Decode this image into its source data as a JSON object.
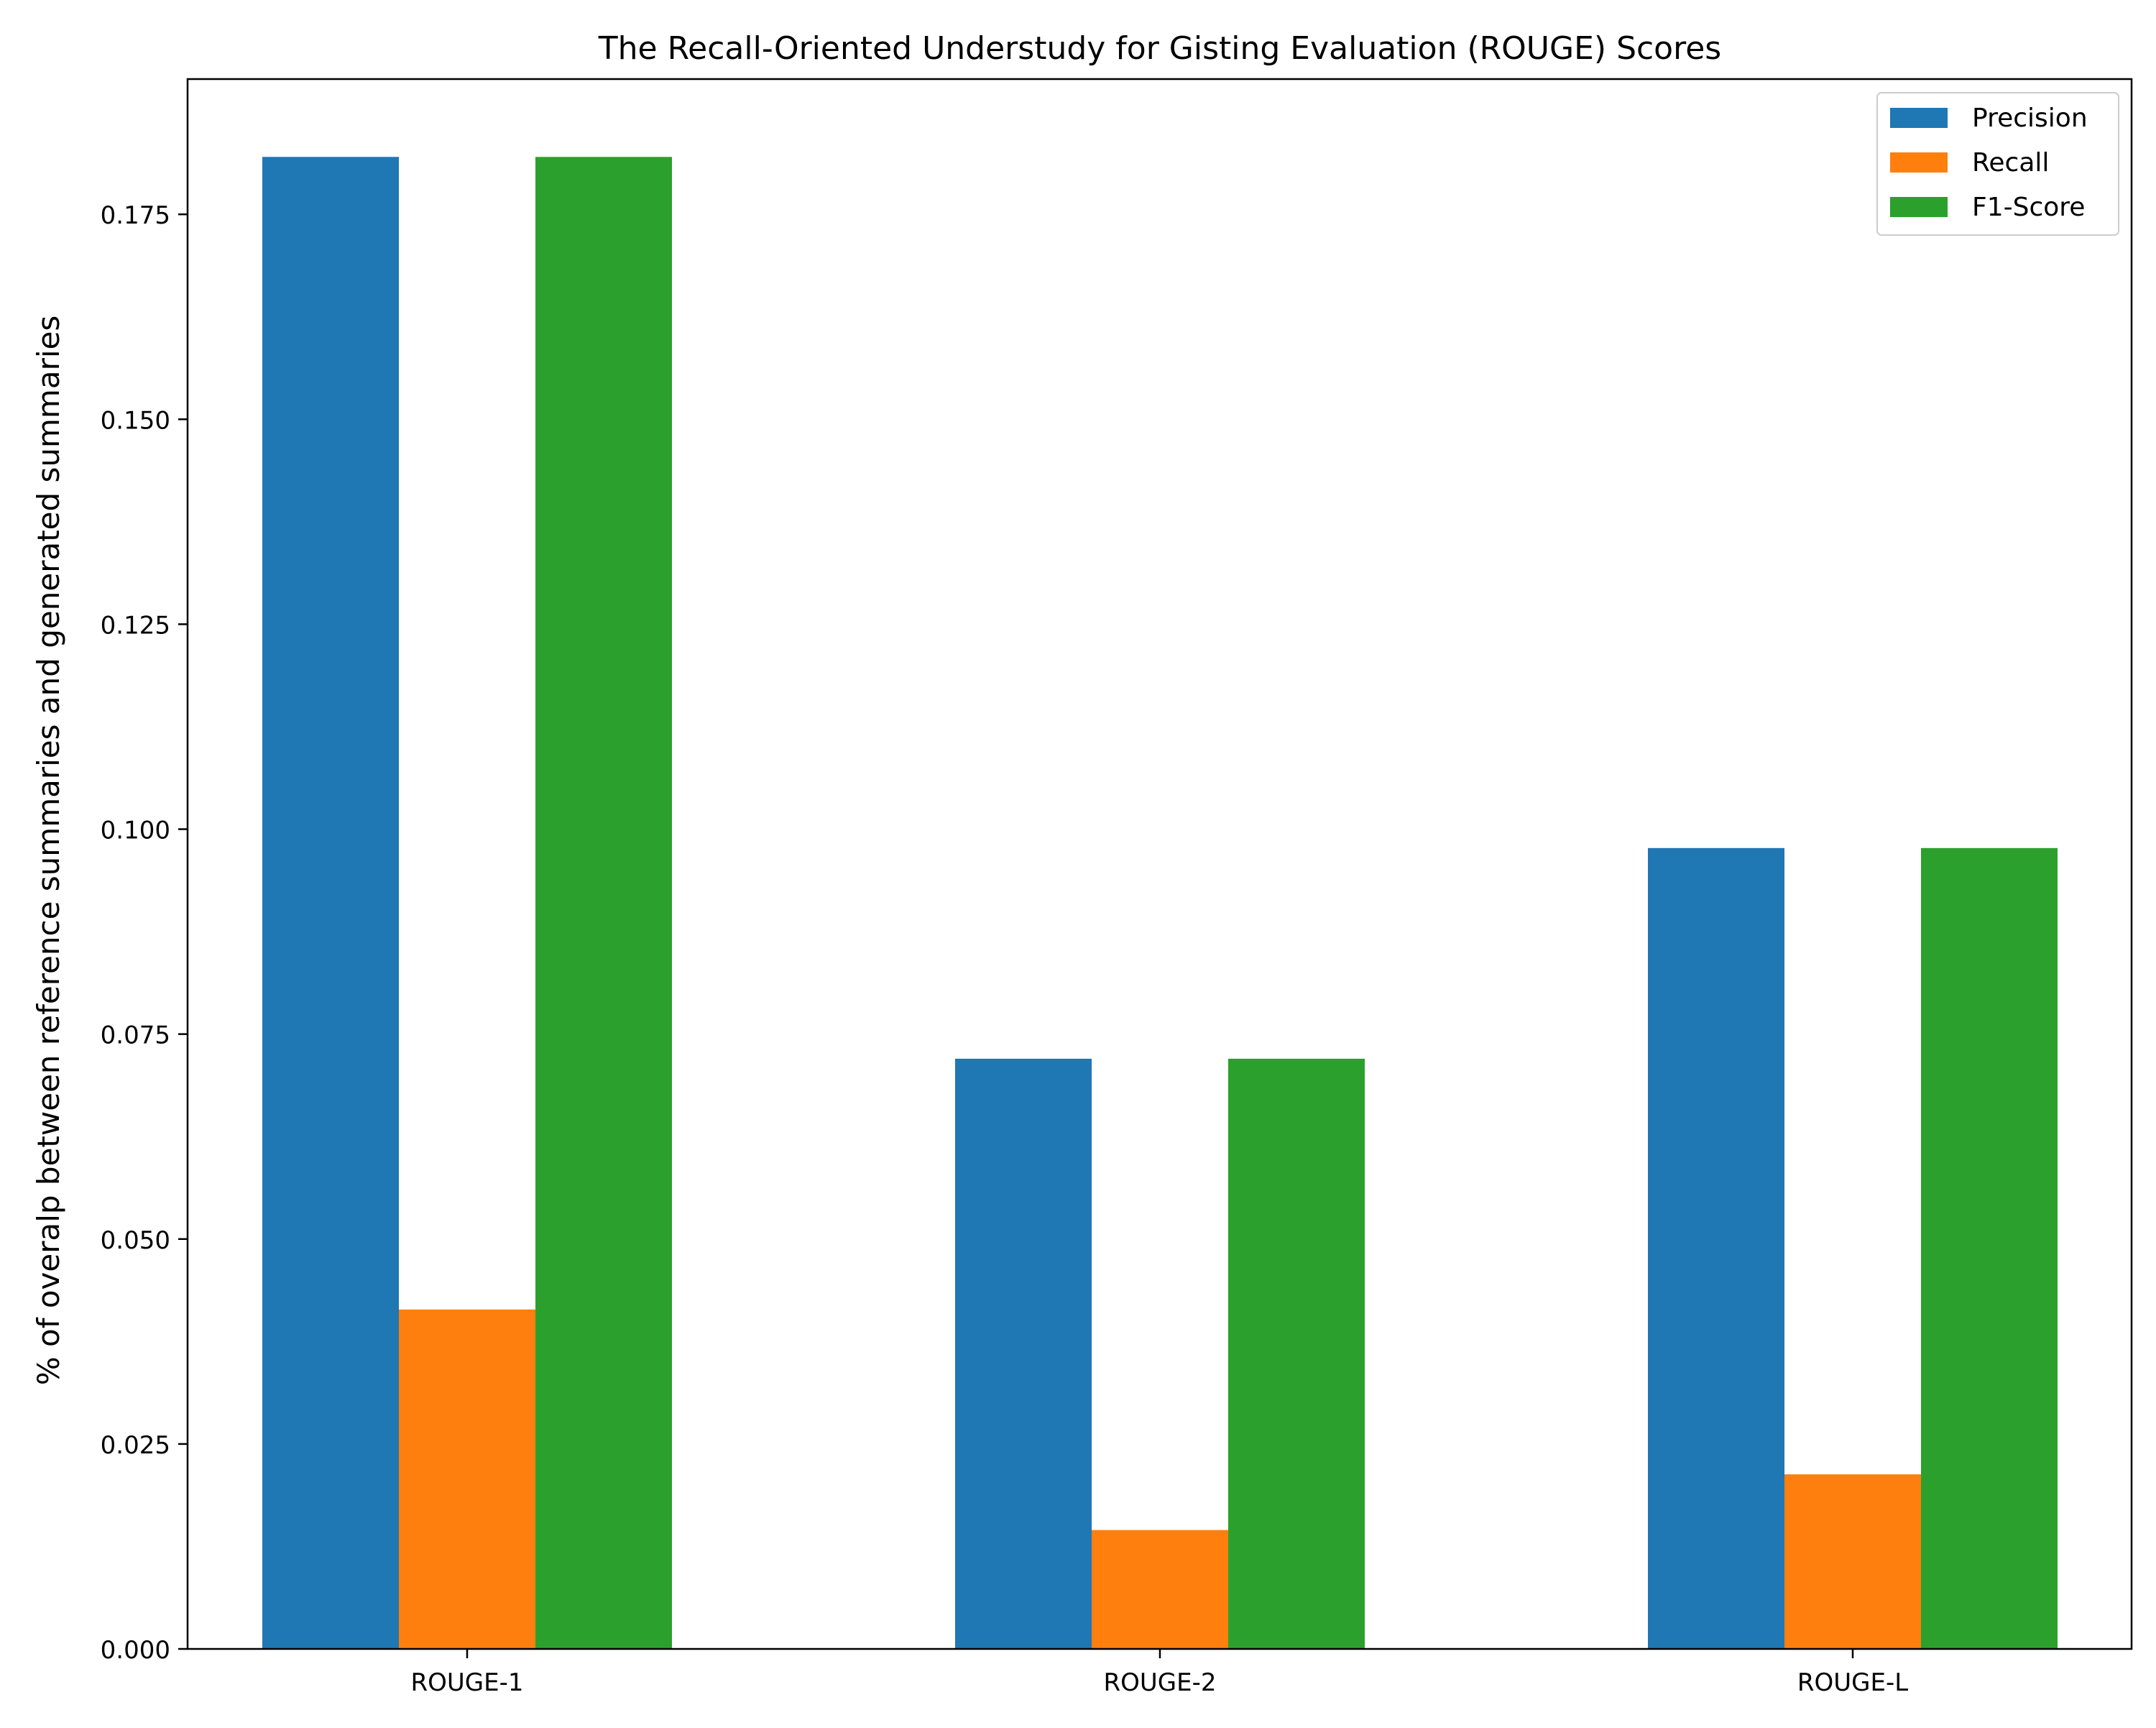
{
  "chart_data": {
    "type": "bar",
    "title": "The Recall-Oriented Understudy for Gisting Evaluation (ROUGE) Scores",
    "xlabel": "",
    "ylabel": "% of overalp between reference summaries and generated summaries",
    "categories": [
      "ROUGE-1",
      "ROUGE-2",
      "ROUGE-L"
    ],
    "series": [
      {
        "name": "Precision",
        "color": "#1f77b4",
        "values": [
          0.182,
          0.072,
          0.0977
        ]
      },
      {
        "name": "Recall",
        "color": "#ff7f0e",
        "values": [
          0.0414,
          0.0145,
          0.0213
        ]
      },
      {
        "name": "F1-Score",
        "color": "#2ca02c",
        "values": [
          0.182,
          0.072,
          0.0977
        ]
      }
    ],
    "ylim": [
      0,
      0.1915
    ],
    "yticks": [
      "0.000",
      "0.025",
      "0.050",
      "0.075",
      "0.100",
      "0.125",
      "0.150",
      "0.175"
    ],
    "ytick_values": [
      0,
      0.025,
      0.05,
      0.075,
      0.1,
      0.125,
      0.15,
      0.175
    ],
    "grid": false,
    "legend_position": "top-right"
  }
}
